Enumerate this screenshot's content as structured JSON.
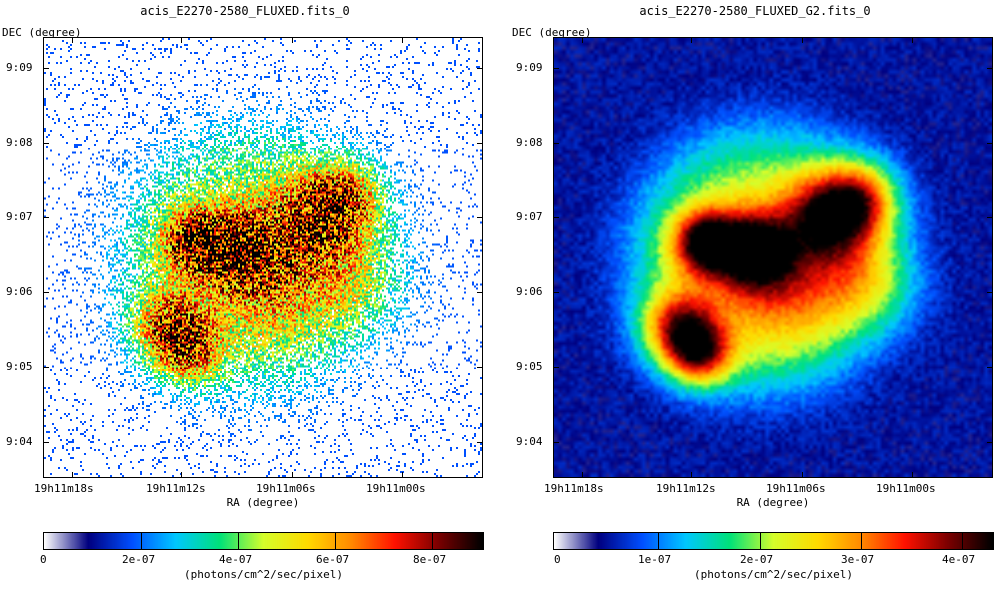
{
  "colors": {
    "colormap": [
      "#ffffff",
      "#000080",
      "#0050ff",
      "#00c8ff",
      "#00e27a",
      "#d6ff2c",
      "#ffdb00",
      "#ff8a00",
      "#ff1200",
      "#7a0000",
      "#000000"
    ]
  },
  "panels": [
    {
      "id": "left",
      "title": "acis_E2270-2580_FLUXED.fits_0",
      "y_axis_label": "DEC (degree)",
      "x_axis_label": "RA (degree)",
      "y_ticks": [
        "9:09",
        "9:08",
        "9:07",
        "9:06",
        "9:05",
        "9:04"
      ],
      "x_ticks": [
        "19h11m18s",
        "19h11m12s",
        "19h11m06s",
        "19h11m00s"
      ],
      "colorbar": {
        "labels": [
          "0",
          "2e-07",
          "4e-07",
          "6e-07",
          "8e-07"
        ],
        "unit": "(photons/cm^2/sec/pixel)"
      }
    },
    {
      "id": "right",
      "title": "acis_E2270-2580_FLUXED_G2.fits_0",
      "y_axis_label": "DEC (degree)",
      "x_axis_label": "RA (degree)",
      "y_ticks": [
        "9:09",
        "9:08",
        "9:07",
        "9:06",
        "9:05",
        "9:04"
      ],
      "x_ticks": [
        "19h11m18s",
        "19h11m12s",
        "19h11m06s",
        "19h11m00s"
      ],
      "colorbar": {
        "labels": [
          "0",
          "1e-07",
          "2e-07",
          "3e-07",
          "4e-07"
        ],
        "unit": "(photons/cm^2/sec/pixel)"
      }
    }
  ]
}
